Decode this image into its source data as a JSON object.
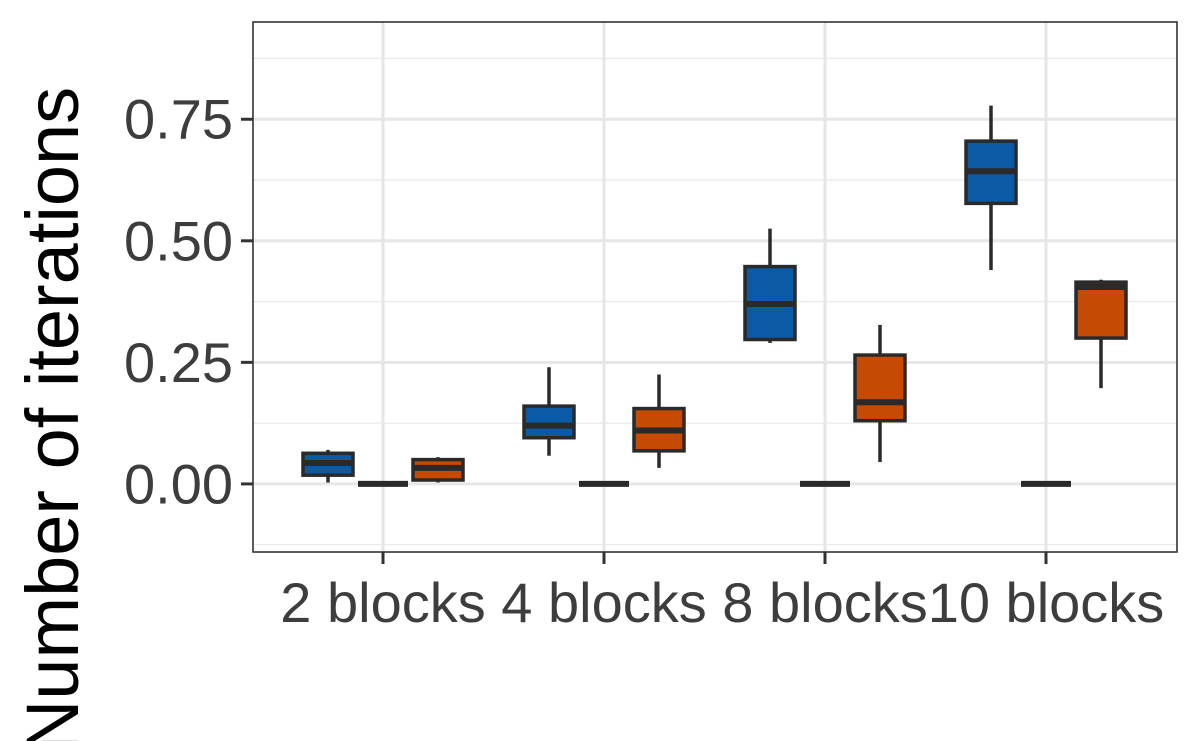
{
  "chart_data": {
    "type": "boxplot",
    "title": "",
    "ylabel": "Number of iterations",
    "xlabel": "",
    "categories": [
      "2 blocks",
      "4 blocks",
      "8 blocks",
      "10 blocks"
    ],
    "ylim": [
      -0.14,
      0.95
    ],
    "yticks": [
      0.0,
      0.25,
      0.5,
      0.75
    ],
    "ytick_labels": [
      "0.00",
      "0.25",
      "0.50",
      "0.75"
    ],
    "grid": true,
    "legend": "none",
    "series": [
      {
        "color": "#0b5aa5",
        "boxes": [
          {
            "min": 0.003,
            "q1": 0.018,
            "median": 0.043,
            "q3": 0.063,
            "max": 0.07
          },
          {
            "min": 0.058,
            "q1": 0.095,
            "median": 0.12,
            "q3": 0.16,
            "max": 0.24
          },
          {
            "min": 0.29,
            "q1": 0.297,
            "median": 0.37,
            "q3": 0.447,
            "max": 0.525
          },
          {
            "min": 0.44,
            "q1": 0.577,
            "median": 0.643,
            "q3": 0.705,
            "max": 0.778
          }
        ]
      },
      {
        "color": "#2a2a2a",
        "boxes": [
          {
            "min": 0.0,
            "q1": 0.0,
            "median": 0.0,
            "q3": 0.0,
            "max": 0.0
          },
          {
            "min": 0.0,
            "q1": 0.0,
            "median": 0.0,
            "q3": 0.0,
            "max": 0.0
          },
          {
            "min": 0.0,
            "q1": 0.0,
            "median": 0.0,
            "q3": 0.0,
            "max": 0.0
          },
          {
            "min": 0.0,
            "q1": 0.0,
            "median": 0.0,
            "q3": 0.0,
            "max": 0.0
          }
        ]
      },
      {
        "color": "#c64a02",
        "boxes": [
          {
            "min": 0.003,
            "q1": 0.008,
            "median": 0.033,
            "q3": 0.05,
            "max": 0.055
          },
          {
            "min": 0.033,
            "q1": 0.068,
            "median": 0.11,
            "q3": 0.155,
            "max": 0.225
          },
          {
            "min": 0.045,
            "q1": 0.13,
            "median": 0.168,
            "q3": 0.265,
            "max": 0.327
          },
          {
            "min": 0.197,
            "q1": 0.3,
            "median": 0.405,
            "q3": 0.415,
            "max": 0.42
          }
        ]
      }
    ]
  }
}
